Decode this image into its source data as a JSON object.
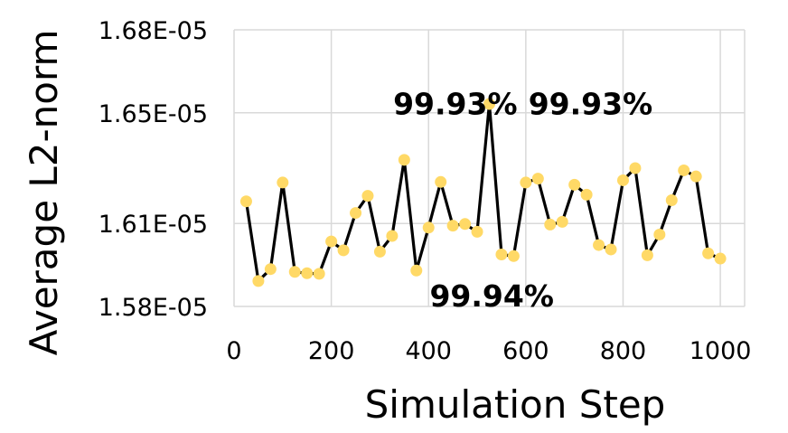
{
  "chart_data": {
    "type": "line",
    "title": "",
    "xlabel": "Simulation Step",
    "ylabel": "Average L2-norm",
    "xlim": [
      0,
      1050
    ],
    "ylim": [
      1.58e-05,
      1.68e-05
    ],
    "x_ticks": [
      0,
      200,
      400,
      600,
      800,
      1000
    ],
    "x_tick_labels": [
      "0",
      "200",
      "400",
      "600",
      "800",
      "1000"
    ],
    "y_ticks": [
      1.58e-05,
      1.61e-05,
      1.65e-05,
      1.68e-05
    ],
    "y_tick_labels": [
      "1.58E-05",
      "1.61E-05",
      "1.65E-05",
      "1.68E-05"
    ],
    "grid": true,
    "line_color": "#000000",
    "marker_color": "#FFD966",
    "series": [
      {
        "x": [
          25,
          50,
          75,
          100,
          125,
          150,
          175,
          200,
          225,
          250,
          275,
          300,
          325,
          350,
          375,
          400,
          425,
          450,
          475,
          500,
          525,
          550,
          575,
          600,
          625,
          650,
          675,
          700,
          725,
          750,
          775,
          800,
          825,
          850,
          875,
          900,
          925,
          950,
          975,
          1000
        ],
        "y": [
          1.618e-05,
          1.5892e-05,
          1.5935e-05,
          1.6248e-05,
          1.5925e-05,
          1.592e-05,
          1.5918e-05,
          1.6035e-05,
          1.6003e-05,
          1.6138e-05,
          1.62e-05,
          1.5998e-05,
          1.6055e-05,
          1.633e-05,
          1.593e-05,
          1.6085e-05,
          1.625e-05,
          1.6092e-05,
          1.6098e-05,
          1.607e-05,
          1.6532e-05,
          1.5988e-05,
          1.5982e-05,
          1.6248e-05,
          1.6262e-05,
          1.6096e-05,
          1.6106e-05,
          1.624e-05,
          1.6204e-05,
          1.6022e-05,
          1.6006e-05,
          1.6256e-05,
          1.63e-05,
          1.5985e-05,
          1.606e-05,
          1.6184e-05,
          1.6292e-05,
          1.627e-05,
          1.5992e-05,
          1.5973e-05
        ]
      }
    ],
    "annotations": [
      {
        "text": "99.93%",
        "x": 455,
        "y": 1.6533e-05
      },
      {
        "text": "99.94%",
        "x": 530,
        "y": 1.584e-05
      },
      {
        "text": "99.93%",
        "x": 733,
        "y": 1.6533e-05
      }
    ]
  }
}
